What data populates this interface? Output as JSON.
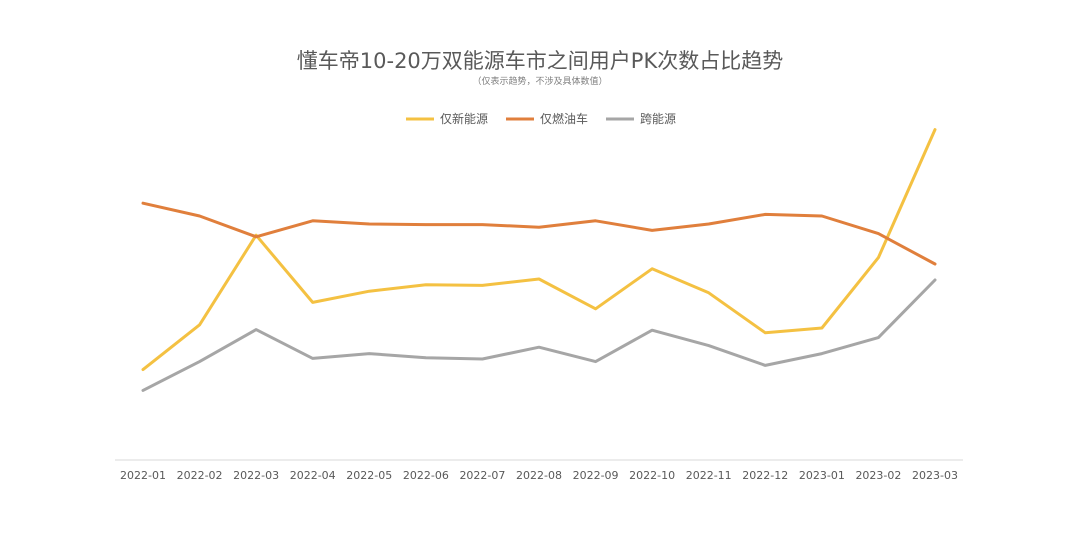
{
  "chart_data": {
    "type": "line",
    "title": "懂车帝10-20万双能源车市之间用户PK次数占比趋势",
    "subtitle": "（仅表示趋势，不涉及具体数值）",
    "xlabel": "",
    "ylabel": "",
    "ylim": [
      0,
      100
    ],
    "grid": false,
    "legend_position": "top",
    "categories": [
      "2022-01",
      "2022-02",
      "2022-03",
      "2022-04",
      "2022-05",
      "2022-06",
      "2022-07",
      "2022-08",
      "2022-09",
      "2022-10",
      "2022-11",
      "2022-12",
      "2023-01",
      "2023-02",
      "2023-03"
    ],
    "series": [
      {
        "name": "仅新能源",
        "color": "#F4C142",
        "values": [
          22,
          36,
          64,
          43,
          46.5,
          48.5,
          48.3,
          50.3,
          41,
          53.5,
          46,
          33.5,
          35,
          57,
          97
        ]
      },
      {
        "name": "仅燃油车",
        "color": "#E07F3C",
        "values": [
          74,
          70,
          63.5,
          68.5,
          67.5,
          67.3,
          67.3,
          66.5,
          68.5,
          65.5,
          67.5,
          70.5,
          70,
          64.5,
          55
        ]
      },
      {
        "name": "跨能源",
        "color": "#A6A6A6",
        "values": [
          15.5,
          24.5,
          34.5,
          25.5,
          27,
          25.7,
          25.3,
          29,
          24.5,
          34.3,
          29.5,
          23.3,
          27,
          32,
          50
        ]
      }
    ]
  }
}
